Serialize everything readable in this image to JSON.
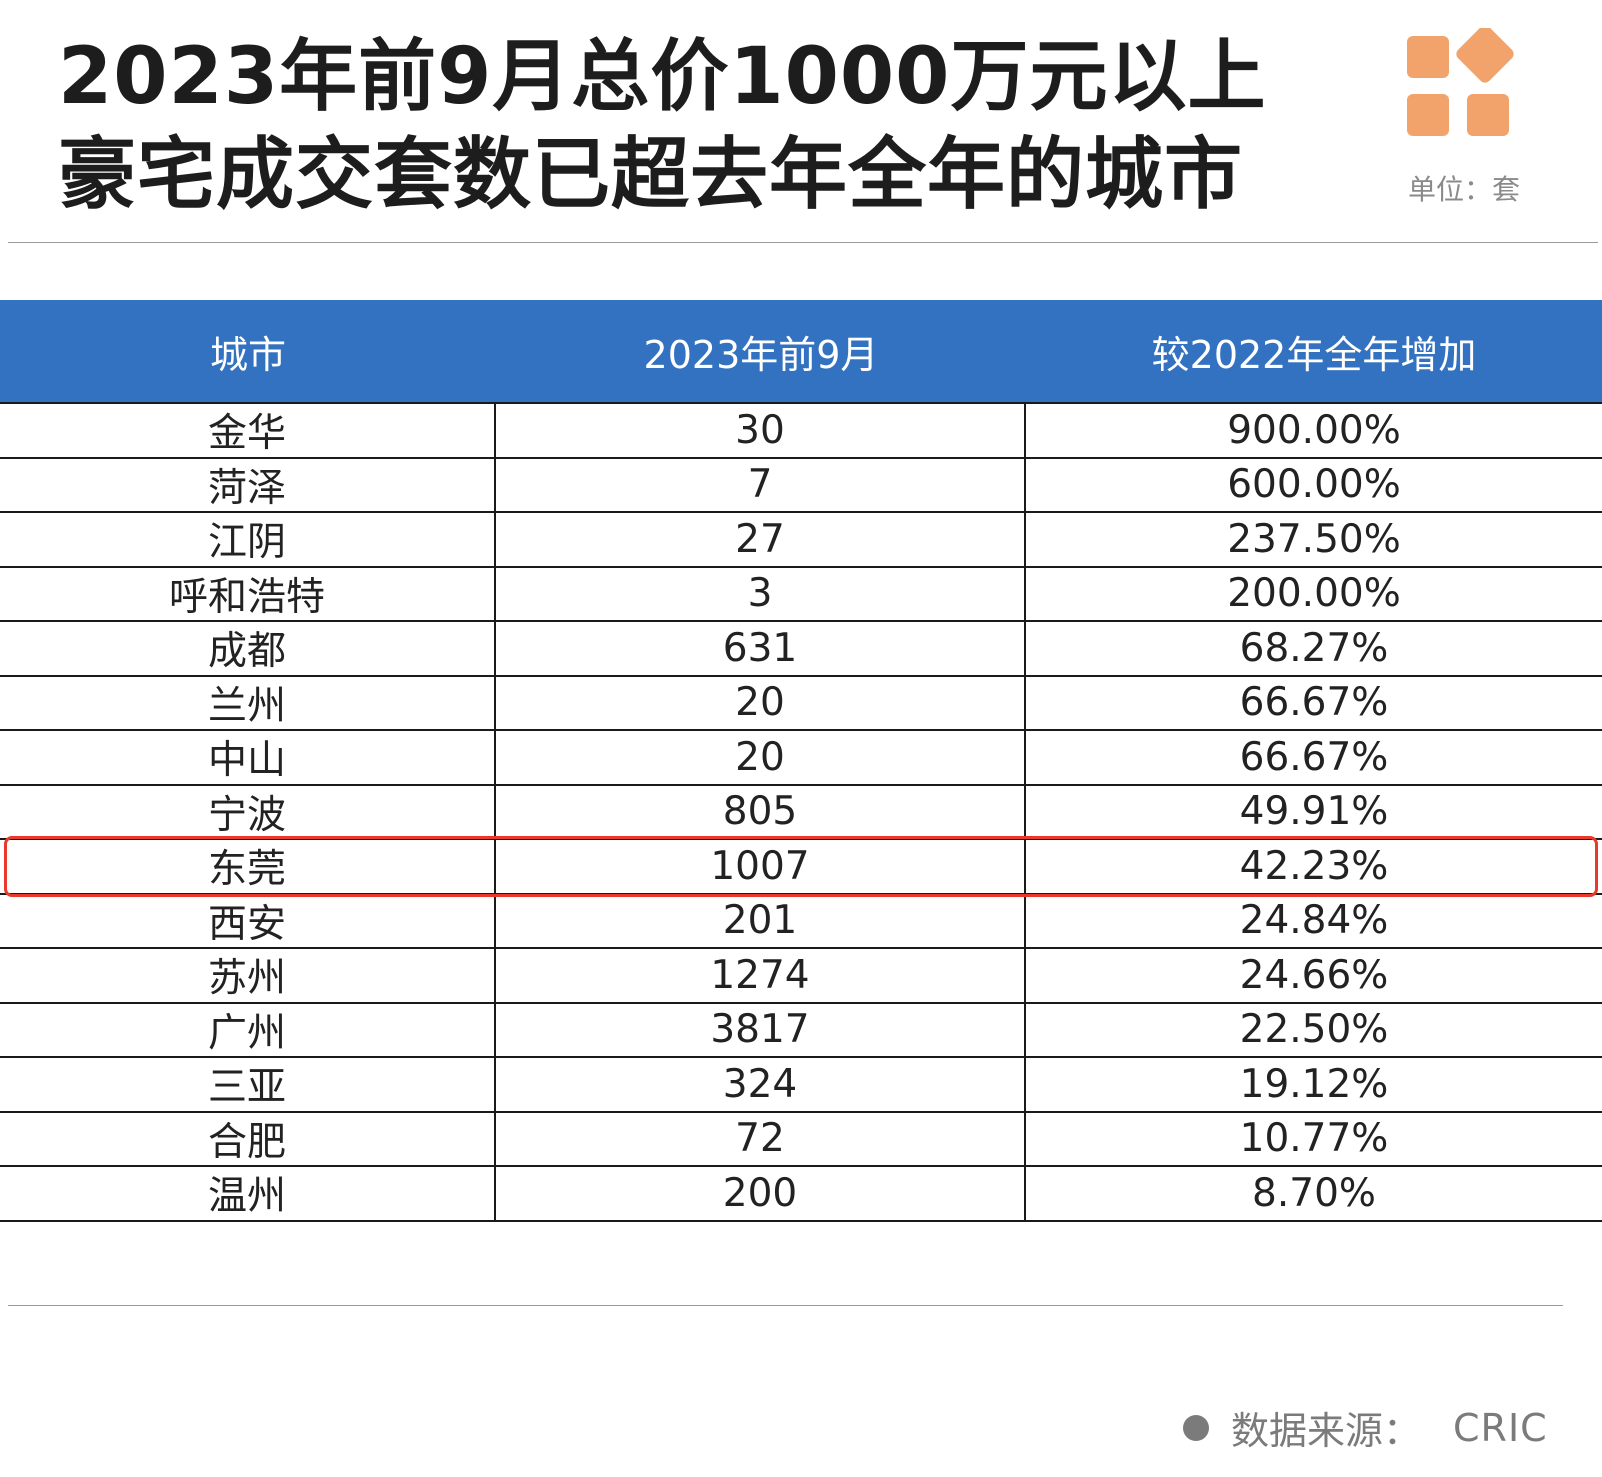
{
  "title": {
    "line1": "2023年前9月总价1000万元以上",
    "line2": "豪宅成交套数已超去年全年的城市"
  },
  "unit_label": "单位：套",
  "colors": {
    "header_bg": "#3372c0",
    "highlight_border": "#e8392b",
    "logo": "#f1a36b"
  },
  "chart_data": {
    "type": "table",
    "columns": [
      "城市",
      "2023年前9月",
      "较2022年全年增加"
    ],
    "rows": [
      [
        "金华",
        "30",
        "900.00%"
      ],
      [
        "菏泽",
        "7",
        "600.00%"
      ],
      [
        "江阴",
        "27",
        "237.50%"
      ],
      [
        "呼和浩特",
        "3",
        "200.00%"
      ],
      [
        "成都",
        "631",
        "68.27%"
      ],
      [
        "兰州",
        "20",
        "66.67%"
      ],
      [
        "中山",
        "20",
        "66.67%"
      ],
      [
        "宁波",
        "805",
        "49.91%"
      ],
      [
        "东莞",
        "1007",
        "42.23%"
      ],
      [
        "西安",
        "201",
        "24.84%"
      ],
      [
        "苏州",
        "1274",
        "24.66%"
      ],
      [
        "广州",
        "3817",
        "22.50%"
      ],
      [
        "三亚",
        "324",
        "19.12%"
      ],
      [
        "合肥",
        "72",
        "10.77%"
      ],
      [
        "温州",
        "200",
        "8.70%"
      ]
    ],
    "highlighted_row": "东莞"
  },
  "source": {
    "label": "数据来源：",
    "value": "CRIC"
  }
}
